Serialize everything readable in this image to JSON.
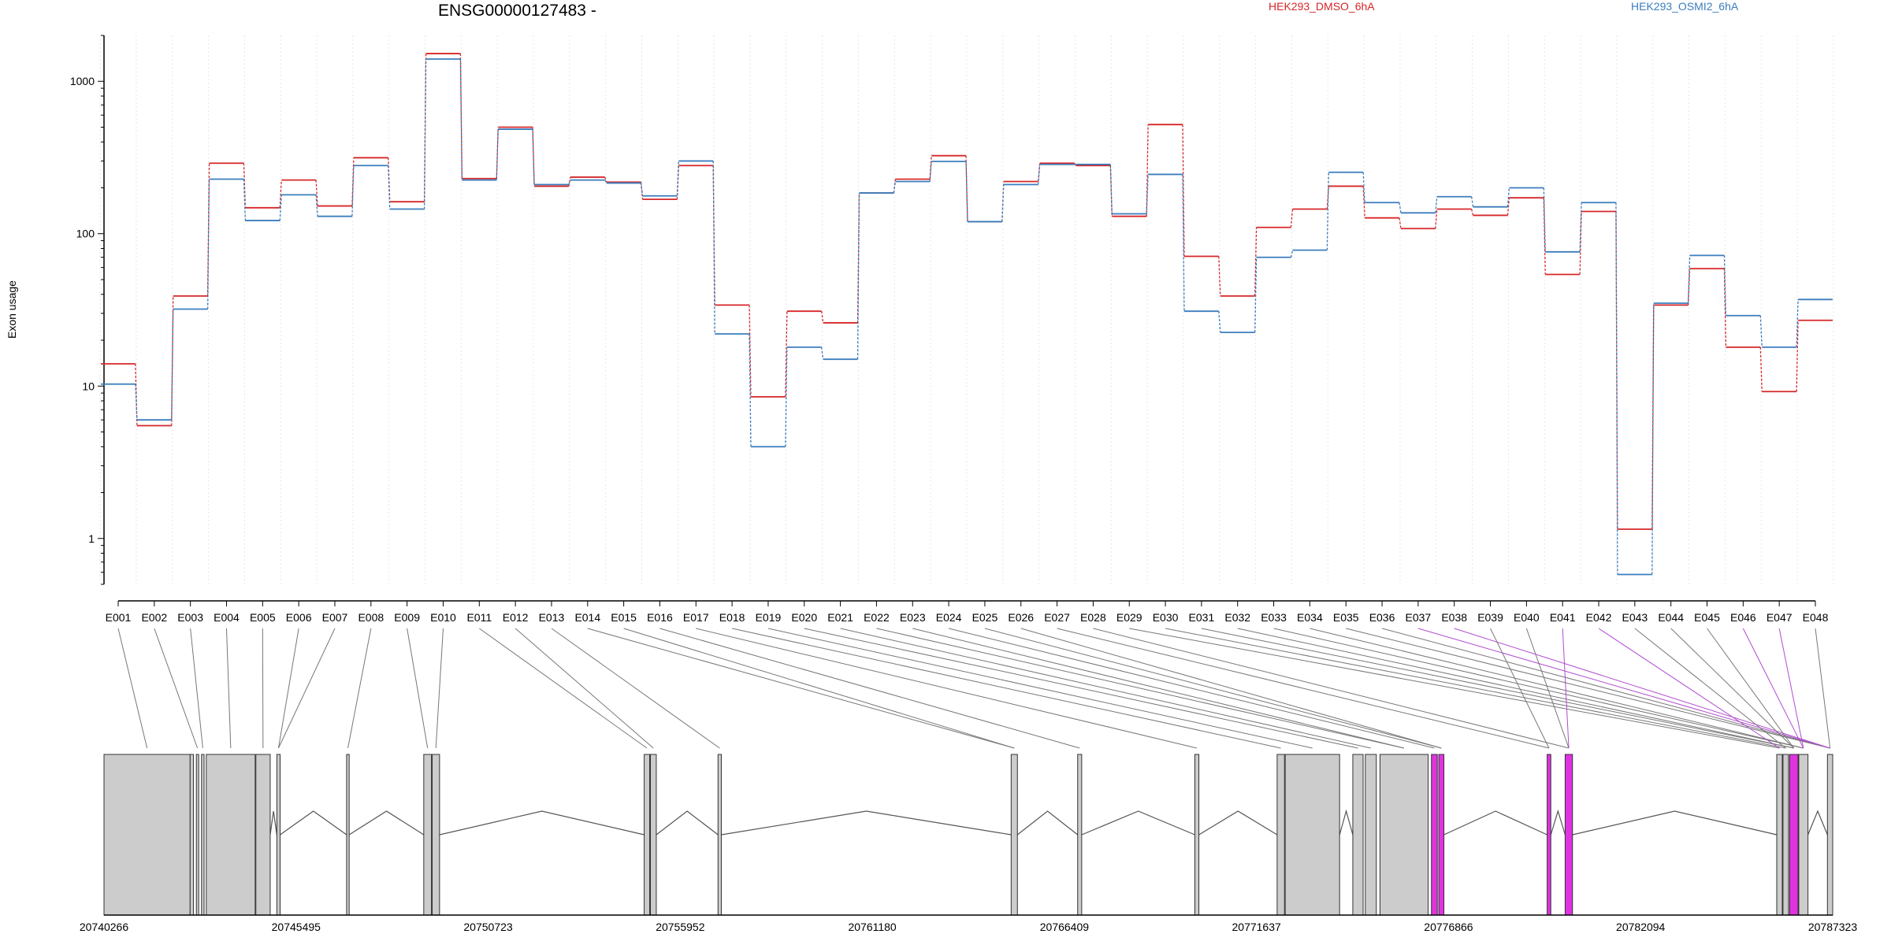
{
  "chart_data": {
    "type": "line",
    "title": "ENSG00000127483 -",
    "ylabel": "Exon usage",
    "yscale": "log",
    "ylim": [
      0.5,
      2000
    ],
    "yticks": [
      "1",
      "10",
      "100",
      "1000"
    ],
    "exons": [
      "E001",
      "E002",
      "E003",
      "E004",
      "E005",
      "E006",
      "E007",
      "E008",
      "E009",
      "E010",
      "E011",
      "E012",
      "E013",
      "E014",
      "E015",
      "E016",
      "E017",
      "E018",
      "E019",
      "E020",
      "E021",
      "E022",
      "E023",
      "E024",
      "E025",
      "E026",
      "E027",
      "E028",
      "E029",
      "E030",
      "E031",
      "E032",
      "E033",
      "E034",
      "E035",
      "E036",
      "E037",
      "E038",
      "E039",
      "E040",
      "E041",
      "E042",
      "E043",
      "E044",
      "E045",
      "E046",
      "E047",
      "E048"
    ],
    "series": [
      {
        "name": "HEK293_DMSO_6hA",
        "color": "#d62728",
        "values": [
          14,
          5.5,
          39,
          290,
          148,
          225,
          152,
          315,
          162,
          1520,
          230,
          500,
          205,
          235,
          218,
          168,
          280,
          34,
          8.5,
          31,
          26,
          185,
          228,
          325,
          120,
          220,
          290,
          280,
          130,
          520,
          71,
          39,
          110,
          145,
          205,
          127,
          108,
          145,
          132,
          172,
          54,
          140,
          1.15,
          34,
          59,
          18,
          9.2,
          27
        ]
      },
      {
        "name": "HEK293_OSMI2_6hA",
        "color": "#3b7dbd",
        "values": [
          10.3,
          6,
          32,
          228,
          122,
          180,
          130,
          280,
          145,
          1400,
          225,
          485,
          210,
          225,
          215,
          177,
          300,
          22,
          4,
          18,
          15,
          185,
          220,
          298,
          120,
          210,
          285,
          285,
          135,
          245,
          31,
          22.5,
          70,
          78,
          253,
          160,
          137,
          175,
          150,
          200,
          76,
          160,
          0.58,
          35,
          72,
          29,
          18,
          37
        ]
      }
    ],
    "genomic_coords": [
      "20740266",
      "20745495",
      "20750723",
      "20755952",
      "20761180",
      "20766409",
      "20771637",
      "20776866",
      "20782094",
      "20787323"
    ],
    "highlighted_exons": [
      "E037",
      "E038",
      "E041",
      "E042",
      "E046",
      "E047"
    ]
  }
}
